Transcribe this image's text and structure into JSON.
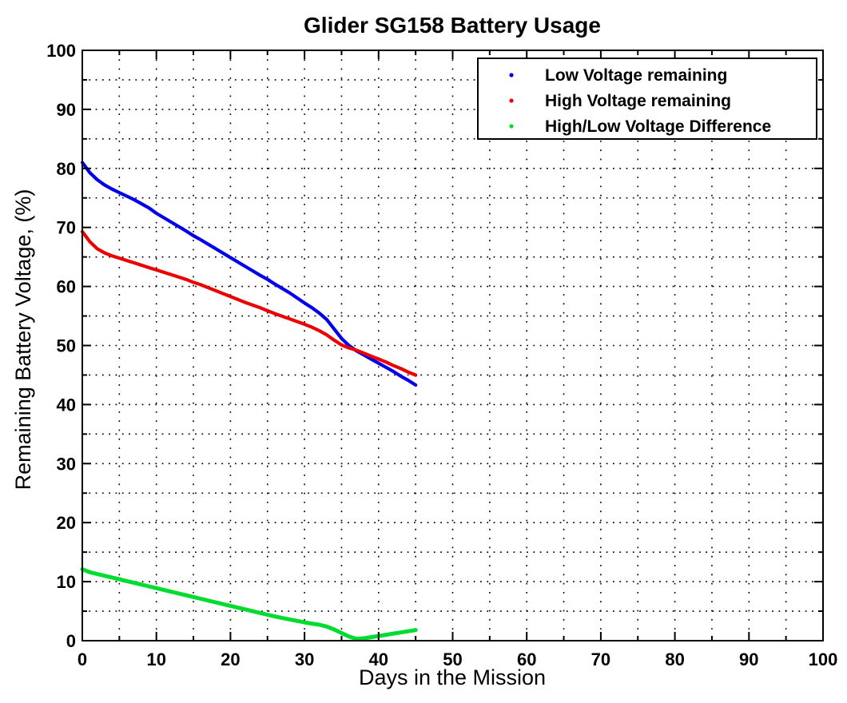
{
  "title": "Glider SG158 Battery Usage",
  "colors": {
    "low_series": "#0000EB",
    "high_series": "#EC0000",
    "diff_series": "#00DC30",
    "axis": "#000000",
    "grid": "#000000",
    "background": "#FFFFFF",
    "legend_background": "#FFFFFF"
  },
  "chart_data": {
    "type": "line",
    "title": "Glider SG158 Battery Usage",
    "xlabel": "Days in the Mission",
    "ylabel": "Remaining Battery Voltage, (%)",
    "xlim": [
      0,
      100
    ],
    "ylim": [
      0,
      100
    ],
    "xticks": [
      0,
      10,
      20,
      30,
      40,
      50,
      60,
      70,
      80,
      90,
      100
    ],
    "yticks": [
      0,
      10,
      20,
      30,
      40,
      50,
      60,
      70,
      80,
      90,
      100
    ],
    "minor_tick_step": 5,
    "grid": "dotted, both axes, every 5 units",
    "legend_position": "top-right-inside",
    "legend_marker": "dot",
    "x": [
      0,
      1,
      2,
      3,
      4,
      5,
      6,
      7,
      8,
      9,
      10,
      12,
      14,
      15,
      16,
      18,
      20,
      22,
      24,
      25,
      26,
      28,
      30,
      31,
      32,
      33,
      34,
      35,
      36,
      37,
      38,
      39,
      40,
      41,
      42,
      43,
      44,
      45
    ],
    "series": [
      {
        "name": "Low Voltage remaining",
        "color": "#0000EB",
        "values": [
          81,
          79.3,
          78.1,
          77.2,
          76.5,
          75.9,
          75.3,
          74.7,
          74,
          73.3,
          72.4,
          70.9,
          69.4,
          68.6,
          67.9,
          66.4,
          64.9,
          63.4,
          61.9,
          61.2,
          60.4,
          58.9,
          57.2,
          56.4,
          55.5,
          54.4,
          52.8,
          51.2,
          50,
          49.1,
          48.4,
          47.7,
          47,
          46.3,
          45.6,
          44.8,
          44.1,
          43.3
        ]
      },
      {
        "name": "High Voltage remaining",
        "color": "#EC0000",
        "values": [
          69.3,
          67.6,
          66.4,
          65.7,
          65.2,
          64.8,
          64.4,
          64,
          63.6,
          63.2,
          62.8,
          62,
          61.2,
          60.7,
          60.3,
          59.3,
          58.3,
          57.3,
          56.4,
          55.9,
          55.4,
          54.5,
          53.6,
          53.1,
          52.5,
          51.8,
          50.9,
          50.1,
          49.6,
          49.2,
          48.7,
          48.2,
          47.7,
          47.2,
          46.6,
          46.1,
          45.5,
          45
        ]
      },
      {
        "name": "High/Low Voltage Difference",
        "color": "#00DC30",
        "values": [
          12.1,
          11.6,
          11.3,
          11,
          10.7,
          10.4,
          10.1,
          9.8,
          9.5,
          9.2,
          8.9,
          8.3,
          7.7,
          7.4,
          7.1,
          6.5,
          5.9,
          5.3,
          4.7,
          4.4,
          4.1,
          3.6,
          3.1,
          2.9,
          2.7,
          2.4,
          1.9,
          1.3,
          0.7,
          0.3,
          0.4,
          0.6,
          0.8,
          1,
          1.2,
          1.4,
          1.6,
          1.8
        ]
      }
    ]
  }
}
